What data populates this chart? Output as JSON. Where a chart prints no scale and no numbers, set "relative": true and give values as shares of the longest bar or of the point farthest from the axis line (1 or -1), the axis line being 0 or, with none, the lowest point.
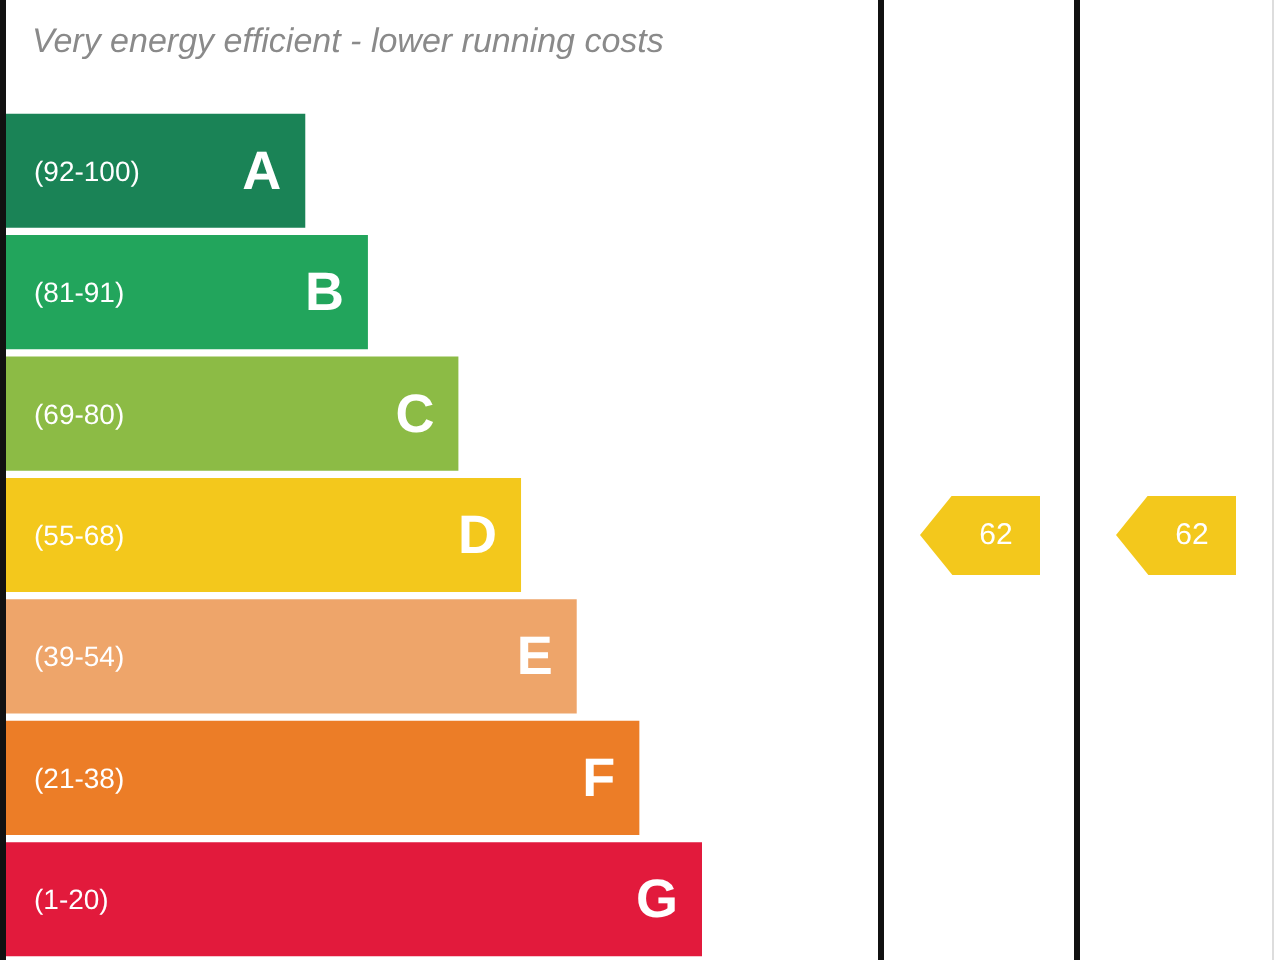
{
  "chart_data": {
    "type": "bar",
    "orientation": "horizontal",
    "relative": true,
    "title": "Very energy efficient - lower running costs",
    "categories": [
      "(92-100)",
      "(81-91)",
      "(69-80)",
      "(55-68)",
      "(39-54)",
      "(21-38)",
      "(1-20)"
    ],
    "values": [
      0.43,
      0.52,
      0.65,
      0.74,
      0.82,
      0.91,
      1
    ],
    "colors": [
      "#1a8356",
      "#22a55c",
      "#8cbb45",
      "#f3c81c",
      "#eea56a",
      "#ec7d27",
      "#e21a3c"
    ],
    "annotations": [
      {
        "text": "A",
        "x": 0.43,
        "y": "(92-100)"
      },
      {
        "text": "B",
        "x": 0.52,
        "y": "(81-91)"
      },
      {
        "text": "C",
        "x": 0.65,
        "y": "(69-80)"
      },
      {
        "text": "D",
        "x": 0.74,
        "y": "(55-68)"
      },
      {
        "text": "E",
        "x": 0.82,
        "y": "(39-54)"
      },
      {
        "text": "F",
        "x": 0.91,
        "y": "(21-38)"
      },
      {
        "text": "G",
        "x": 1,
        "y": "(1-20)"
      },
      "62",
      "62"
    ]
  }
}
